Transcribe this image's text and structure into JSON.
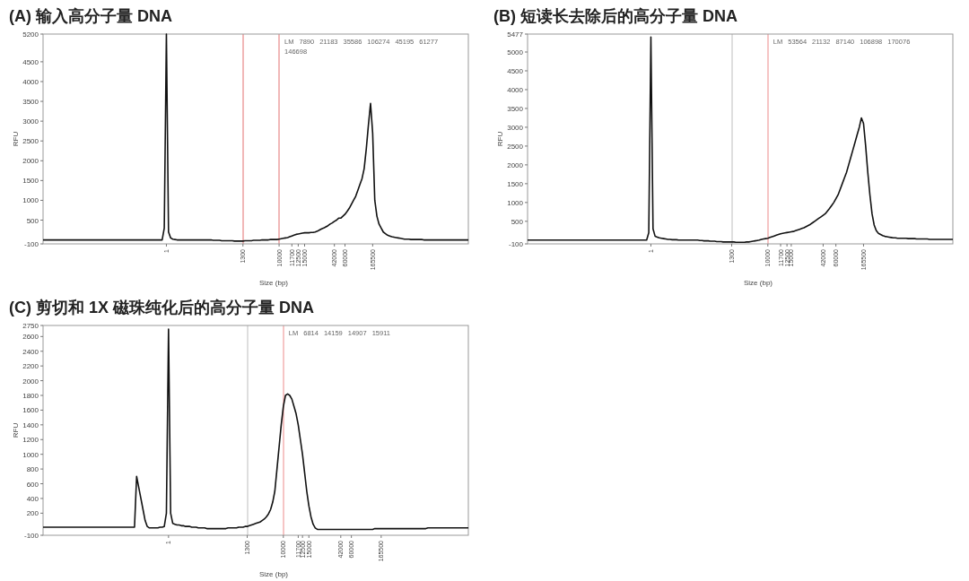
{
  "chart_data": [
    {
      "type": "line",
      "title": "(A) 输入高分子量 DNA",
      "xlabel": "Size (bp)",
      "ylabel": "RFU",
      "categories": [
        null,
        null,
        null,
        null,
        null,
        null,
        null,
        null,
        null,
        null,
        null,
        null,
        null,
        null,
        null,
        null,
        null,
        null,
        null,
        null,
        null,
        null,
        null,
        null,
        null,
        null,
        null,
        null,
        null,
        null,
        null,
        null,
        null,
        null,
        null,
        null,
        null,
        null,
        null,
        null,
        null,
        null,
        null,
        null,
        null,
        null,
        null,
        null,
        null,
        null,
        null,
        null,
        null,
        null,
        null,
        null,
        null,
        null,
        "1",
        null,
        null,
        null,
        null,
        null,
        null,
        null,
        null,
        null,
        null,
        null,
        null,
        null,
        null,
        null,
        null,
        null,
        null,
        null,
        null,
        null,
        null,
        null,
        null,
        null,
        null,
        null,
        null,
        null,
        null,
        null,
        null,
        null,
        null,
        null,
        "1300",
        null,
        null,
        null,
        null,
        null,
        null,
        null,
        null,
        null,
        null,
        null,
        null,
        null,
        null,
        null,
        null,
        "10000",
        null,
        null,
        null,
        null,
        null,
        "11700",
        null,
        null,
        "12500",
        null,
        null,
        "15000",
        null,
        null,
        null,
        null,
        null,
        null,
        null,
        null,
        null,
        null,
        null,
        null,
        null,
        "42000",
        null,
        null,
        null,
        null,
        "60000",
        null,
        null,
        null,
        null,
        null,
        null,
        null,
        null,
        null,
        null,
        null,
        null,
        "165500",
        null,
        null,
        null,
        null,
        null,
        null,
        null,
        null,
        null,
        null,
        null,
        null,
        null,
        null,
        null,
        null,
        null,
        null,
        null,
        null,
        null,
        null,
        null,
        null,
        null,
        null,
        null,
        null,
        null,
        null,
        null,
        null,
        null,
        null,
        null,
        null,
        null,
        null,
        null,
        null,
        null,
        null,
        null,
        null,
        null
      ],
      "ylim": [
        -100,
        5200
      ],
      "yticks": [
        -100,
        500,
        1000,
        1500,
        2000,
        2500,
        3000,
        3500,
        4000,
        4500,
        5200
      ],
      "ref_lines": [
        {
          "axis": "x",
          "value": "1300",
          "color": "#e88a8a"
        },
        {
          "axis": "x",
          "value": "10000",
          "color": "#e88a8a"
        }
      ],
      "annotations": [
        "LM",
        "7890",
        "21183",
        "35586",
        "106274",
        "45195",
        "61277",
        "146698"
      ],
      "series": [
        {
          "color": "#111111",
          "values": [
            0,
            0,
            0,
            0,
            0,
            0,
            0,
            0,
            0,
            0,
            0,
            0,
            0,
            0,
            0,
            0,
            0,
            0,
            0,
            0,
            0,
            0,
            0,
            0,
            0,
            0,
            0,
            0,
            0,
            0,
            0,
            0,
            0,
            0,
            0,
            0,
            0,
            0,
            0,
            0,
            0,
            0,
            0,
            0,
            0,
            0,
            0,
            0,
            0,
            0,
            0,
            0,
            0,
            0,
            0,
            0,
            0,
            300,
            5200,
            200,
            50,
            20,
            10,
            0,
            0,
            0,
            0,
            0,
            0,
            0,
            0,
            0,
            0,
            0,
            0,
            0,
            0,
            0,
            0,
            0,
            -10,
            -10,
            -10,
            -10,
            -20,
            -20,
            -20,
            -20,
            -20,
            -20,
            -30,
            -30,
            -30,
            -30,
            -30,
            -20,
            -20,
            -20,
            -20,
            -10,
            -10,
            -10,
            -10,
            0,
            0,
            0,
            0,
            10,
            10,
            10,
            10,
            20,
            30,
            40,
            50,
            60,
            80,
            100,
            120,
            140,
            150,
            160,
            170,
            180,
            180,
            180,
            190,
            190,
            200,
            220,
            250,
            280,
            300,
            330,
            360,
            400,
            430,
            470,
            500,
            550,
            550,
            600,
            650,
            720,
            800,
            900,
            1000,
            1100,
            1250,
            1400,
            1550,
            1800,
            2300,
            2900,
            3450,
            2700,
            1000,
            600,
            400,
            300,
            200,
            160,
            120,
            100,
            80,
            70,
            60,
            50,
            40,
            30,
            20,
            20,
            20,
            10,
            10,
            10,
            10,
            10,
            10,
            0,
            0,
            0,
            0,
            0,
            0,
            0,
            0,
            0,
            0,
            0,
            0,
            0,
            0,
            0,
            0,
            0,
            0,
            0,
            0,
            0,
            0
          ]
        }
      ]
    },
    {
      "type": "line",
      "title": "(B) 短读长去除后的高分子量 DNA",
      "xlabel": "Size (bp)",
      "ylabel": "RFU",
      "categories": [
        null,
        null,
        null,
        null,
        null,
        null,
        null,
        null,
        null,
        null,
        null,
        null,
        null,
        null,
        null,
        null,
        null,
        null,
        null,
        null,
        null,
        null,
        null,
        null,
        null,
        null,
        null,
        null,
        null,
        null,
        null,
        null,
        null,
        null,
        null,
        null,
        null,
        null,
        null,
        null,
        null,
        null,
        null,
        null,
        null,
        null,
        null,
        null,
        null,
        null,
        null,
        null,
        null,
        null,
        null,
        null,
        null,
        null,
        "1",
        null,
        null,
        null,
        null,
        null,
        null,
        null,
        null,
        null,
        null,
        null,
        null,
        null,
        null,
        null,
        null,
        null,
        null,
        null,
        null,
        null,
        null,
        null,
        null,
        null,
        null,
        null,
        null,
        null,
        null,
        null,
        null,
        null,
        null,
        null,
        null,
        null,
        "1300",
        null,
        null,
        null,
        null,
        null,
        null,
        null,
        null,
        null,
        null,
        null,
        null,
        null,
        null,
        null,
        null,
        "10000",
        null,
        null,
        null,
        null,
        null,
        "11700",
        null,
        null,
        "12500",
        null,
        "15000",
        null,
        null,
        null,
        null,
        null,
        null,
        null,
        null,
        null,
        null,
        null,
        null,
        null,
        null,
        "42000",
        null,
        null,
        null,
        null,
        null,
        "60000",
        null,
        null,
        null,
        null,
        null,
        null,
        null,
        null,
        null,
        null,
        null,
        null,
        "165500",
        null,
        null,
        null,
        null,
        null,
        null,
        null,
        null,
        null,
        null,
        null,
        null,
        null,
        null,
        null,
        null,
        null,
        null,
        null,
        null,
        null,
        null,
        null,
        null,
        null,
        null,
        null,
        null,
        null,
        null,
        null,
        null,
        null,
        null,
        null,
        null,
        null,
        null,
        null,
        null,
        null,
        null
      ],
      "ylim": [
        -100,
        5477
      ],
      "yticks": [
        -100,
        500,
        1000,
        1500,
        2000,
        2500,
        3000,
        3500,
        4000,
        4500,
        5000,
        5477
      ],
      "ref_lines": [
        {
          "axis": "x",
          "value": "1300",
          "color": "#c8c8c8"
        },
        {
          "axis": "x",
          "value": "10000",
          "color": "#f0a0a0"
        }
      ],
      "annotations": [
        "LM",
        "53564",
        "21132",
        "87140",
        "106898",
        "170076"
      ],
      "series": [
        {
          "color": "#111111",
          "values": [
            0,
            0,
            0,
            0,
            0,
            0,
            0,
            0,
            0,
            0,
            0,
            0,
            0,
            0,
            0,
            0,
            0,
            0,
            0,
            0,
            0,
            0,
            0,
            0,
            0,
            0,
            0,
            0,
            0,
            0,
            0,
            0,
            0,
            0,
            0,
            0,
            0,
            0,
            0,
            0,
            0,
            0,
            0,
            0,
            0,
            0,
            0,
            0,
            0,
            0,
            0,
            0,
            0,
            0,
            0,
            0,
            0,
            200,
            5400,
            300,
            100,
            80,
            60,
            50,
            40,
            30,
            20,
            20,
            10,
            10,
            10,
            0,
            0,
            0,
            0,
            0,
            0,
            0,
            0,
            0,
            0,
            -10,
            -10,
            -20,
            -20,
            -20,
            -30,
            -30,
            -30,
            -40,
            -40,
            -40,
            -50,
            -50,
            -50,
            -50,
            -50,
            -50,
            -60,
            -60,
            -60,
            -60,
            -60,
            -50,
            -50,
            -40,
            -30,
            -20,
            -10,
            0,
            20,
            30,
            40,
            50,
            70,
            90,
            110,
            130,
            150,
            170,
            180,
            190,
            200,
            210,
            220,
            230,
            250,
            270,
            290,
            310,
            330,
            360,
            390,
            420,
            460,
            500,
            540,
            580,
            620,
            660,
            700,
            770,
            840,
            920,
            1000,
            1100,
            1200,
            1350,
            1500,
            1650,
            1800,
            2000,
            2200,
            2400,
            2600,
            2800,
            3000,
            3250,
            3100,
            2500,
            1800,
            1200,
            700,
            400,
            250,
            180,
            150,
            120,
            100,
            90,
            80,
            70,
            60,
            60,
            50,
            50,
            50,
            50,
            50,
            40,
            40,
            40,
            40,
            30,
            30,
            30,
            30,
            30,
            30,
            20,
            20,
            20,
            20,
            20,
            20,
            20,
            20,
            20,
            20,
            20,
            20
          ]
        }
      ]
    },
    {
      "type": "line",
      "title": "(C) 剪切和 1X 磁珠纯化后的高分子量 DNA",
      "xlabel": "Size (bp)",
      "ylabel": "RFU",
      "categories": [
        null,
        null,
        null,
        null,
        null,
        null,
        null,
        null,
        null,
        null,
        null,
        null,
        null,
        null,
        null,
        null,
        null,
        null,
        null,
        null,
        null,
        null,
        null,
        null,
        null,
        null,
        null,
        null,
        null,
        null,
        null,
        null,
        null,
        null,
        null,
        null,
        null,
        null,
        null,
        null,
        null,
        null,
        null,
        null,
        null,
        null,
        null,
        null,
        null,
        null,
        null,
        null,
        null,
        null,
        null,
        null,
        null,
        null,
        null,
        "1",
        null,
        null,
        null,
        null,
        null,
        null,
        null,
        null,
        null,
        null,
        null,
        null,
        null,
        null,
        null,
        null,
        null,
        null,
        null,
        null,
        null,
        null,
        null,
        null,
        null,
        null,
        null,
        null,
        null,
        null,
        null,
        null,
        null,
        null,
        null,
        null,
        "1300",
        null,
        null,
        null,
        null,
        null,
        null,
        null,
        null,
        null,
        null,
        null,
        null,
        null,
        null,
        null,
        null,
        "10000",
        null,
        null,
        null,
        null,
        null,
        null,
        "11700",
        null,
        "12500",
        null,
        null,
        "15000",
        null,
        null,
        null,
        null,
        null,
        null,
        null,
        null,
        null,
        null,
        null,
        null,
        null,
        null,
        "42000",
        null,
        null,
        null,
        null,
        "60000",
        null,
        null,
        null,
        null,
        null,
        null,
        null,
        null,
        null,
        null,
        null,
        null,
        null,
        "165500",
        null,
        null,
        null,
        null,
        null,
        null,
        null,
        null,
        null,
        null,
        null,
        null,
        null,
        null,
        null,
        null,
        null,
        null,
        null,
        null,
        null,
        null,
        null,
        null,
        null,
        null,
        null,
        null,
        null,
        null,
        null,
        null,
        null,
        null,
        null,
        null,
        null,
        null,
        null,
        null,
        null
      ],
      "ylim": [
        -100,
        2750
      ],
      "yticks": [
        -100,
        200,
        400,
        600,
        800,
        1000,
        1200,
        1400,
        1600,
        1800,
        2000,
        2200,
        2400,
        2600,
        2750
      ],
      "ref_lines": [
        {
          "axis": "x",
          "value": "1300",
          "color": "#c8c8c8"
        },
        {
          "axis": "x",
          "value": "10000",
          "color": "#f0a0a0"
        }
      ],
      "annotations": [
        "LM",
        "6814",
        "14159",
        "14907",
        "15911"
      ],
      "series": [
        {
          "color": "#111111",
          "values": [
            10,
            10,
            10,
            10,
            10,
            10,
            10,
            10,
            10,
            10,
            10,
            10,
            10,
            10,
            10,
            10,
            10,
            10,
            10,
            10,
            10,
            10,
            10,
            10,
            10,
            10,
            10,
            10,
            10,
            10,
            10,
            10,
            10,
            10,
            10,
            10,
            10,
            10,
            10,
            10,
            10,
            10,
            10,
            10,
            700,
            550,
            400,
            250,
            100,
            20,
            0,
            0,
            0,
            0,
            0,
            10,
            10,
            20,
            200,
            2700,
            200,
            60,
            50,
            40,
            40,
            30,
            30,
            20,
            20,
            20,
            10,
            10,
            10,
            0,
            0,
            0,
            0,
            -10,
            -10,
            -10,
            -10,
            -10,
            -10,
            -10,
            -10,
            -10,
            -10,
            0,
            0,
            0,
            0,
            0,
            10,
            10,
            10,
            20,
            20,
            30,
            40,
            50,
            60,
            70,
            80,
            100,
            120,
            150,
            190,
            250,
            350,
            500,
            800,
            1100,
            1400,
            1650,
            1800,
            1820,
            1800,
            1750,
            1650,
            1550,
            1400,
            1200,
            1000,
            750,
            500,
            300,
            150,
            50,
            0,
            -20,
            -20,
            -20,
            -20,
            -20,
            -20,
            -20,
            -20,
            -20,
            -20,
            -20,
            -20,
            -20,
            -20,
            -20,
            -20,
            -20,
            -20,
            -20,
            -20,
            -20,
            -20,
            -20,
            -20,
            -20,
            -20,
            -20,
            -10,
            -10,
            -10,
            -10,
            -10,
            -10,
            -10,
            -10,
            -10,
            -10,
            -10,
            -10,
            -10,
            -10,
            -10,
            -10,
            -10,
            -10,
            -10,
            -10,
            -10,
            -10,
            -10,
            -10,
            -10,
            0,
            0,
            0,
            0,
            0,
            0,
            0,
            0,
            0,
            0,
            0,
            0,
            0,
            0,
            0,
            0,
            0,
            0,
            0,
            0
          ]
        }
      ]
    }
  ]
}
